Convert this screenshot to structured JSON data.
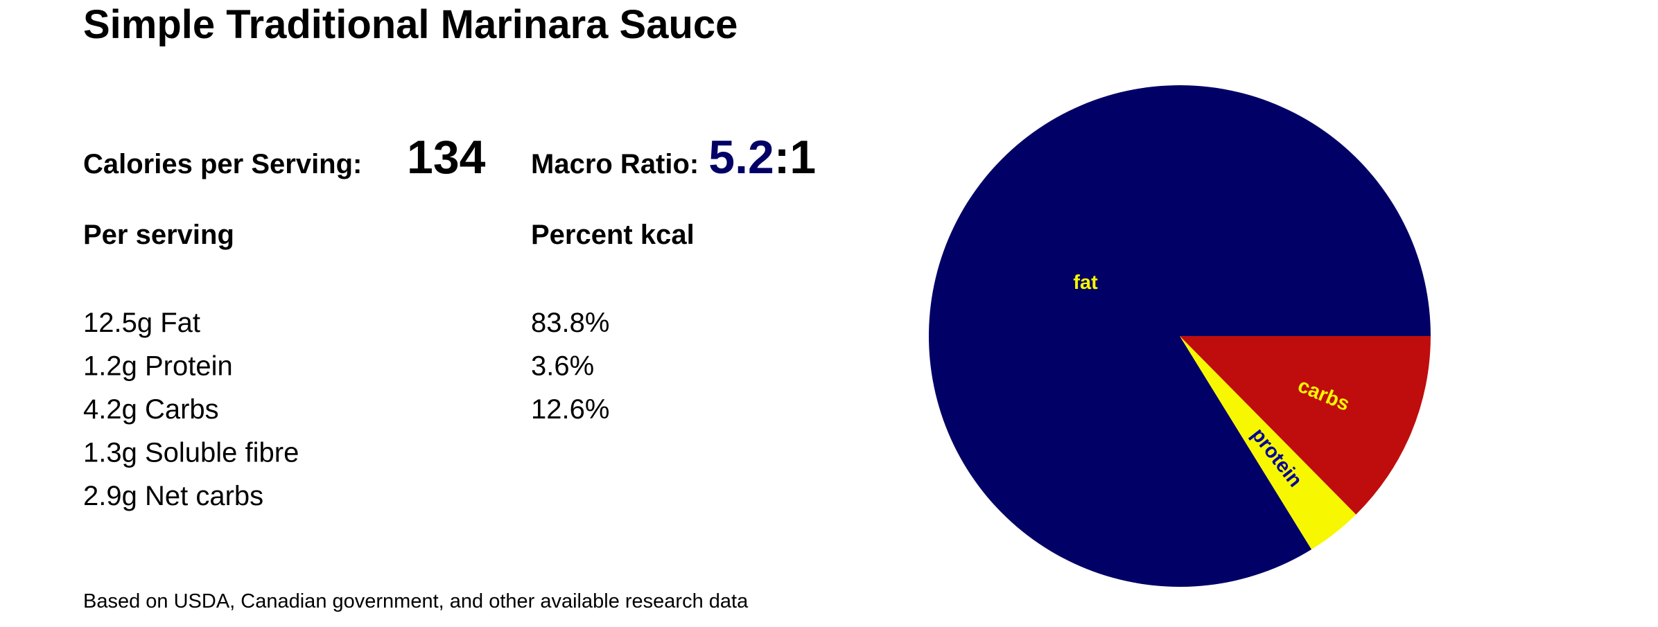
{
  "title": "Simple Traditional Marinara Sauce",
  "calories": {
    "label": "Calories per Serving:",
    "value": 134
  },
  "macro_ratio": {
    "label": "Macro Ratio:",
    "ratio": "5.2",
    "suffix": ":1"
  },
  "table": {
    "headers": [
      "Per serving",
      "Percent kcal"
    ],
    "amounts": [
      "12.5g Fat",
      "1.2g Protein",
      "4.2g Carbs",
      "1.3g Soluble fibre",
      "2.9g Net carbs"
    ],
    "percents": [
      "83.8%",
      "3.6%",
      "12.6%"
    ]
  },
  "footnote": "Based on USDA, Canadian government, and other available research data",
  "chart_data": {
    "type": "pie",
    "categories": [
      "fat",
      "protein",
      "carbs"
    ],
    "values": [
      83.8,
      3.6,
      12.6
    ],
    "colors": [
      "#000066",
      "#f7f700",
      "#bf0d0d"
    ],
    "label_colors": [
      "#f7f700",
      "#000099",
      "#f7f700"
    ]
  }
}
